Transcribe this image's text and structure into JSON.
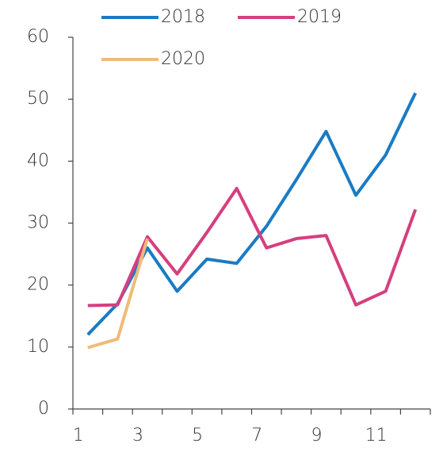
{
  "chart_data": {
    "type": "line",
    "categories": [
      "1",
      null,
      "3",
      null,
      "5",
      null,
      "7",
      null,
      "9",
      null,
      "11",
      null
    ],
    "series": [
      {
        "name": "2018",
        "color": "#1a7bc4",
        "values": [
          12,
          17,
          26,
          19,
          24.2,
          23.5,
          29.5,
          37,
          44.8,
          34.5,
          41,
          51
        ]
      },
      {
        "name": "2019",
        "color": "#d63f7e",
        "values": [
          16.7,
          16.8,
          27.8,
          21.8,
          28.5,
          35.6,
          26,
          27.5,
          28,
          16.8,
          19,
          32.2
        ]
      },
      {
        "name": "2020",
        "color": "#f0bb78",
        "values": [
          9.9,
          11.3,
          27.5,
          null,
          null,
          null,
          null,
          null,
          null,
          null,
          null,
          null
        ]
      }
    ],
    "ylim": [
      0,
      60
    ],
    "yticks": [
      0,
      10,
      20,
      30,
      40,
      50,
      60
    ]
  }
}
